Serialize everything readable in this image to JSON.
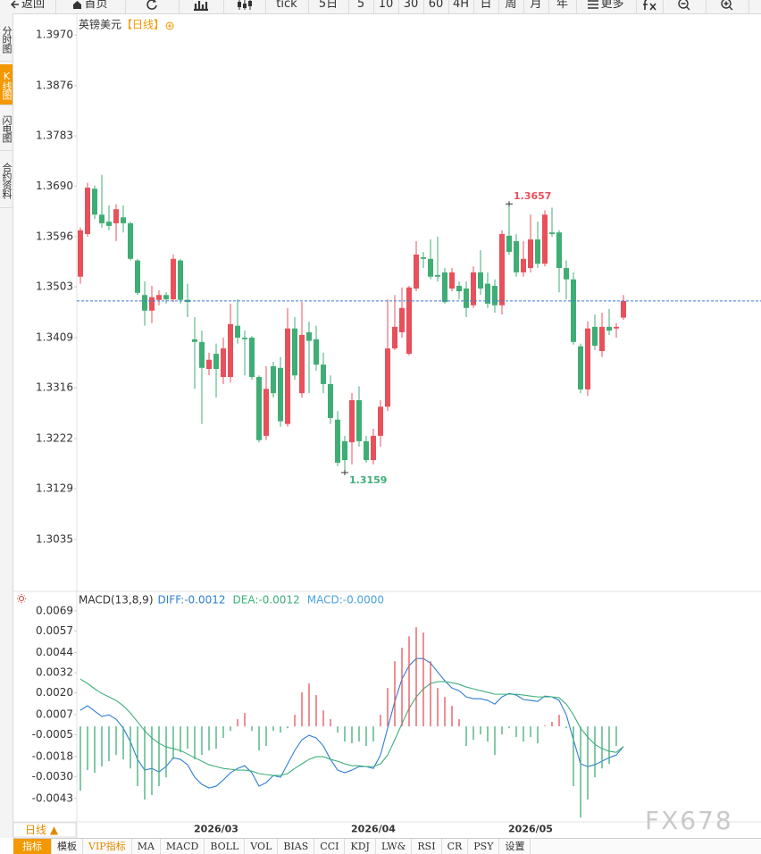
{
  "toolbar": {
    "back": "返回",
    "home": "首页",
    "tick": "tick",
    "periods": [
      "5日",
      "5",
      "10",
      "30",
      "60",
      "4H",
      "日",
      "周",
      "月",
      "年"
    ],
    "more": "更多"
  },
  "sidebar": {
    "items": [
      "分时图",
      "K线图",
      "闪电图",
      "合约资料"
    ],
    "active": 1,
    "active_color": "#f39800"
  },
  "chart_data": [
    {
      "type": "candlestick",
      "title": "英镑美元",
      "subtitle": "【日线】",
      "subtitle_color": "#f39800",
      "categories": [
        null,
        null,
        null,
        null,
        null,
        null,
        null,
        null,
        null,
        null,
        null,
        null,
        null,
        null,
        null,
        null,
        null,
        null,
        null,
        "2026/03",
        null,
        null,
        null,
        null,
        null,
        null,
        null,
        null,
        null,
        null,
        null,
        null,
        null,
        null,
        null,
        null,
        null,
        null,
        null,
        null,
        null,
        "2026/04",
        null,
        null,
        null,
        null,
        null,
        null,
        null,
        null,
        null,
        null,
        null,
        null,
        null,
        null,
        null,
        null,
        null,
        null,
        null,
        null,
        null,
        "2026/05",
        null,
        null,
        null,
        null,
        null,
        null,
        null,
        null,
        null,
        null,
        null,
        null,
        null
      ],
      "ohlc": [
        [
          1.3522,
          1.3613,
          1.3509,
          1.3608
        ],
        [
          1.3601,
          1.3696,
          1.3596,
          1.3687
        ],
        [
          1.3685,
          1.3691,
          1.3629,
          1.3637
        ],
        [
          1.3637,
          1.3711,
          1.3613,
          1.3621
        ],
        [
          1.3624,
          1.3654,
          1.3608,
          1.3616
        ],
        [
          1.3621,
          1.3656,
          1.3588,
          1.3647
        ],
        [
          1.3632,
          1.3654,
          1.3604,
          1.3621
        ],
        [
          1.3621,
          1.3624,
          1.3552,
          1.3555
        ],
        [
          1.3552,
          1.3555,
          1.3488,
          1.3492
        ],
        [
          1.3488,
          1.3513,
          1.3431,
          1.3459
        ],
        [
          1.3459,
          1.3505,
          1.3436,
          1.3484
        ],
        [
          1.3479,
          1.3497,
          1.3469,
          1.3488
        ],
        [
          1.3488,
          1.3493,
          1.3472,
          1.348
        ],
        [
          1.348,
          1.3563,
          1.3475,
          1.3555
        ],
        [
          1.3552,
          1.3555,
          1.3472,
          1.3479
        ],
        [
          1.3479,
          1.3509,
          1.3447,
          1.3475
        ],
        [
          1.3406,
          1.3447,
          1.3314,
          1.3401
        ],
        [
          1.3401,
          1.3422,
          1.3249,
          1.3353
        ],
        [
          1.3351,
          1.3381,
          1.3339,
          1.3368
        ],
        [
          1.3379,
          1.3398,
          1.3298,
          1.3351
        ],
        [
          1.3336,
          1.3409,
          1.3323,
          1.3389
        ],
        [
          1.3336,
          1.3472,
          1.3326,
          1.3434
        ],
        [
          1.3431,
          1.348,
          1.3398,
          1.3409
        ],
        [
          1.3409,
          1.3422,
          1.3339,
          1.3406
        ],
        [
          1.3409,
          1.3412,
          1.3331,
          1.3336
        ],
        [
          1.3336,
          1.3339,
          1.3215,
          1.3219
        ],
        [
          1.3227,
          1.3356,
          1.3219,
          1.3314
        ],
        [
          1.3356,
          1.3364,
          1.3298,
          1.3306
        ],
        [
          1.3353,
          1.3373,
          1.3244,
          1.3254
        ],
        [
          1.3249,
          1.3464,
          1.3244,
          1.3426
        ],
        [
          1.3426,
          1.3447,
          1.3331,
          1.3339
        ],
        [
          1.3306,
          1.3475,
          1.3298,
          1.3414
        ],
        [
          1.3419,
          1.3439,
          1.3306,
          1.3403
        ],
        [
          1.3406,
          1.3431,
          1.3348,
          1.3359
        ],
        [
          1.3359,
          1.3381,
          1.3306,
          1.3323
        ],
        [
          1.3323,
          1.3339,
          1.3249,
          1.326
        ],
        [
          1.3257,
          1.3273,
          1.3171,
          1.3177
        ],
        [
          1.3217,
          1.3227,
          1.3159,
          1.3182
        ],
        [
          1.3215,
          1.3306,
          1.3174,
          1.3293
        ],
        [
          1.3293,
          1.3319,
          1.3207,
          1.3217
        ],
        [
          1.3217,
          1.3227,
          1.3177,
          1.3182
        ],
        [
          1.3182,
          1.324,
          1.3174,
          1.3227
        ],
        [
          1.3227,
          1.3293,
          1.3207,
          1.3281
        ],
        [
          1.3281,
          1.348,
          1.3273,
          1.3389
        ],
        [
          1.3389,
          1.3488,
          1.3386,
          1.3429
        ],
        [
          1.3419,
          1.3502,
          1.3409,
          1.3464
        ],
        [
          1.3379,
          1.3505,
          1.3376,
          1.3502
        ],
        [
          1.35,
          1.3588,
          1.3495,
          1.3563
        ],
        [
          1.3558,
          1.3568,
          1.3538,
          1.3555
        ],
        [
          1.3555,
          1.3591,
          1.3517,
          1.3522
        ],
        [
          1.3525,
          1.3596,
          1.3513,
          1.3522
        ],
        [
          1.353,
          1.3538,
          1.3472,
          1.3475
        ],
        [
          1.35,
          1.3538,
          1.3495,
          1.353
        ],
        [
          1.3505,
          1.3513,
          1.348,
          1.3495
        ],
        [
          1.35,
          1.3513,
          1.3447,
          1.3464
        ],
        [
          1.3469,
          1.3541,
          1.3464,
          1.353
        ],
        [
          1.353,
          1.3571,
          1.3488,
          1.35
        ],
        [
          1.3509,
          1.353,
          1.3464,
          1.3472
        ],
        [
          1.3505,
          1.3517,
          1.3455,
          1.3469
        ],
        [
          1.3469,
          1.3608,
          1.3452,
          1.3601
        ],
        [
          1.3598,
          1.3657,
          1.3563,
          1.3568
        ],
        [
          1.3588,
          1.3601,
          1.3522,
          1.353
        ],
        [
          1.353,
          1.3588,
          1.3522,
          1.3555
        ],
        [
          1.3538,
          1.3637,
          1.353,
          1.3591
        ],
        [
          1.3591,
          1.3624,
          1.3538,
          1.3546
        ],
        [
          1.3546,
          1.3645,
          1.3541,
          1.3637
        ],
        [
          1.3604,
          1.365,
          1.3596,
          1.3601
        ],
        [
          1.3604,
          1.3608,
          1.3493,
          1.3538
        ],
        [
          1.3538,
          1.3552,
          1.348,
          1.3517
        ],
        [
          1.3517,
          1.353,
          1.3396,
          1.3401
        ],
        [
          1.3393,
          1.3398,
          1.3306,
          1.3313
        ],
        [
          1.3313,
          1.3439,
          1.3301,
          1.3426
        ],
        [
          1.3429,
          1.3452,
          1.3386,
          1.3394
        ],
        [
          1.3384,
          1.3455,
          1.3373,
          1.3429
        ],
        [
          1.3429,
          1.3462,
          1.3414,
          1.3422
        ],
        [
          1.3426,
          1.3436,
          1.3409,
          1.3429
        ],
        [
          1.3446,
          1.3488,
          1.3442,
          1.3477
        ]
      ],
      "up_color": "#e8505b",
      "down_color": "#3fae75",
      "ylim": [
        1.2942,
        1.401
      ],
      "yticks": [
        {
          "value": 1.397,
          "label": "1.3970"
        },
        1.3876,
        1.3783,
        {
          "value": 1.369,
          "label": "1.3690"
        },
        1.3596,
        1.3503,
        1.3409,
        1.3316,
        1.3222,
        1.3129,
        1.3035
      ],
      "last_price_line": true,
      "last_price_color": "#3a7bd5",
      "annotations": [
        {
          "candle": 60,
          "field": 1,
          "color": "#e8505b"
        },
        {
          "candle": 37,
          "field": 2,
          "color": "#3fae75"
        }
      ]
    },
    {
      "type": "macd",
      "title": "MACD(13,8,9)",
      "ylim": [
        -0.0057,
        0.0079
      ],
      "yticks": [
        0.0069,
        0.0057,
        0.0044,
        0.0032,
        {
          "value": 0.002,
          "label": "0.0020"
        },
        0.0007,
        -0.0005,
        -0.0018,
        {
          "value": -0.003,
          "label": "-0.0030"
        },
        -0.0043
      ],
      "series": [
        {
          "label": "DIFF:-0.0012",
          "color": "#2f7fd3",
          "style": "line",
          "values": [
            0.00096,
            0.00123,
            0.00091,
            0.00059,
            0.00069,
            0.00043,
            -0.00011,
            -0.00091,
            -0.00197,
            -0.00261,
            -0.00251,
            -0.00272,
            -0.0024,
            -0.00187,
            -0.00197,
            -0.00229,
            -0.00304,
            -0.00346,
            -0.00368,
            -0.00357,
            -0.0032,
            -0.00277,
            -0.00251,
            -0.00235,
            -0.00277,
            -0.00357,
            -0.00336,
            -0.00293,
            -0.00304,
            -0.00224,
            -0.00144,
            -0.0008,
            -0.00053,
            -0.00069,
            -0.00117,
            -0.00197,
            -0.00261,
            -0.00277,
            -0.00261,
            -0.0024,
            -0.0024,
            -0.00251,
            -0.00171,
            -0.00011,
            0.00149,
            0.00282,
            0.00362,
            0.00405,
            0.00405,
            0.00378,
            0.00325,
            0.00272,
            0.00229,
            0.00213,
            0.00176,
            0.00165,
            0.00165,
            0.00155,
            0.00133,
            0.00176,
            0.00197,
            0.00187,
            0.0016,
            0.00155,
            0.00149,
            0.00181,
            0.00176,
            0.00155,
            0.00069,
            -0.0008,
            -0.00224,
            -0.0024,
            -0.00229,
            -0.00208,
            -0.00187,
            -0.00171,
            -0.0012
          ]
        },
        {
          "label": "DEA:-0.0012",
          "color": "#3db07a",
          "style": "line",
          "values": [
            0.00282,
            0.00256,
            0.00224,
            0.00197,
            0.00176,
            0.00155,
            0.00123,
            0.0008,
            0.00027,
            -0.00027,
            -0.00069,
            -0.00101,
            -0.00123,
            -0.00133,
            -0.00144,
            -0.00165,
            -0.00187,
            -0.00208,
            -0.00229,
            -0.0024,
            -0.00251,
            -0.00256,
            -0.00261,
            -0.00261,
            -0.00267,
            -0.00282,
            -0.00288,
            -0.00293,
            -0.00293,
            -0.00282,
            -0.00251,
            -0.00224,
            -0.00197,
            -0.00181,
            -0.00181,
            -0.00197,
            -0.00208,
            -0.00224,
            -0.00235,
            -0.00235,
            -0.0024,
            -0.0024,
            -0.00224,
            -0.00171,
            -0.0008,
            0.00016,
            0.00107,
            0.00176,
            0.00224,
            0.00256,
            0.00267,
            0.00267,
            0.00261,
            0.00251,
            0.00235,
            0.00224,
            0.00213,
            0.00203,
            0.00192,
            0.00192,
            0.00192,
            0.00192,
            0.00187,
            0.00181,
            0.00176,
            0.00176,
            0.00176,
            0.00171,
            0.00133,
            0.00069,
            -0.00011,
            -0.00064,
            -0.00107,
            -0.00133,
            -0.00149,
            -0.00155,
            -0.0012
          ]
        },
        {
          "label": "MACD:-0.0000",
          "color": "#4aa3df",
          "style": "histogram",
          "up_color": "#e8505b",
          "down_color": "#3fae75",
          "values": [
            -0.00384,
            -0.00261,
            -0.00277,
            -0.0024,
            -0.00208,
            -0.00171,
            -0.00197,
            -0.00251,
            -0.00357,
            -0.00437,
            -0.0041,
            -0.00357,
            -0.00304,
            -0.00197,
            -0.00155,
            -0.00133,
            -0.00197,
            -0.00171,
            -0.00144,
            -0.00133,
            -0.00069,
            -0.00027,
            0.00043,
            0.0008,
            -0.00027,
            -0.00144,
            -0.00117,
            -0.00027,
            -0.00037,
            -0.00011,
            0.00069,
            0.00203,
            0.00256,
            0.00187,
            0.00096,
            0.00043,
            -0.00037,
            -0.00091,
            -0.00101,
            -0.00091,
            -0.00117,
            -0.00091,
            0.00069,
            0.00229,
            0.00389,
            0.00469,
            0.00538,
            0.00592,
            0.0056,
            0.00389,
            0.00229,
            0.00176,
            0.00123,
            0.00043,
            -0.00117,
            -0.0008,
            -0.00048,
            -0.00091,
            -0.00171,
            -0.00048,
            -0.00011,
            -0.00064,
            -0.00091,
            -0.00064,
            -0.00101,
            5e-05,
            0.00027,
            0.00069,
            -0.00011,
            -0.00357,
            -0.00544,
            -0.00437,
            -0.00304,
            -0.00251,
            -0.00224,
            -0.00117,
            0
          ]
        }
      ]
    }
  ],
  "period_tab": "日线 ▲",
  "indicator_bar": {
    "items": [
      "指标",
      "模板",
      "VIP指标",
      "MA",
      "MACD",
      "BOLL",
      "VOL",
      "BIAS",
      "CCI",
      "KDJ",
      "LW&",
      "RSI",
      "CR",
      "PSY",
      "设置"
    ],
    "active": 0,
    "highlight": 2,
    "highlight_color": "#e08a00"
  },
  "watermark": "FX678"
}
